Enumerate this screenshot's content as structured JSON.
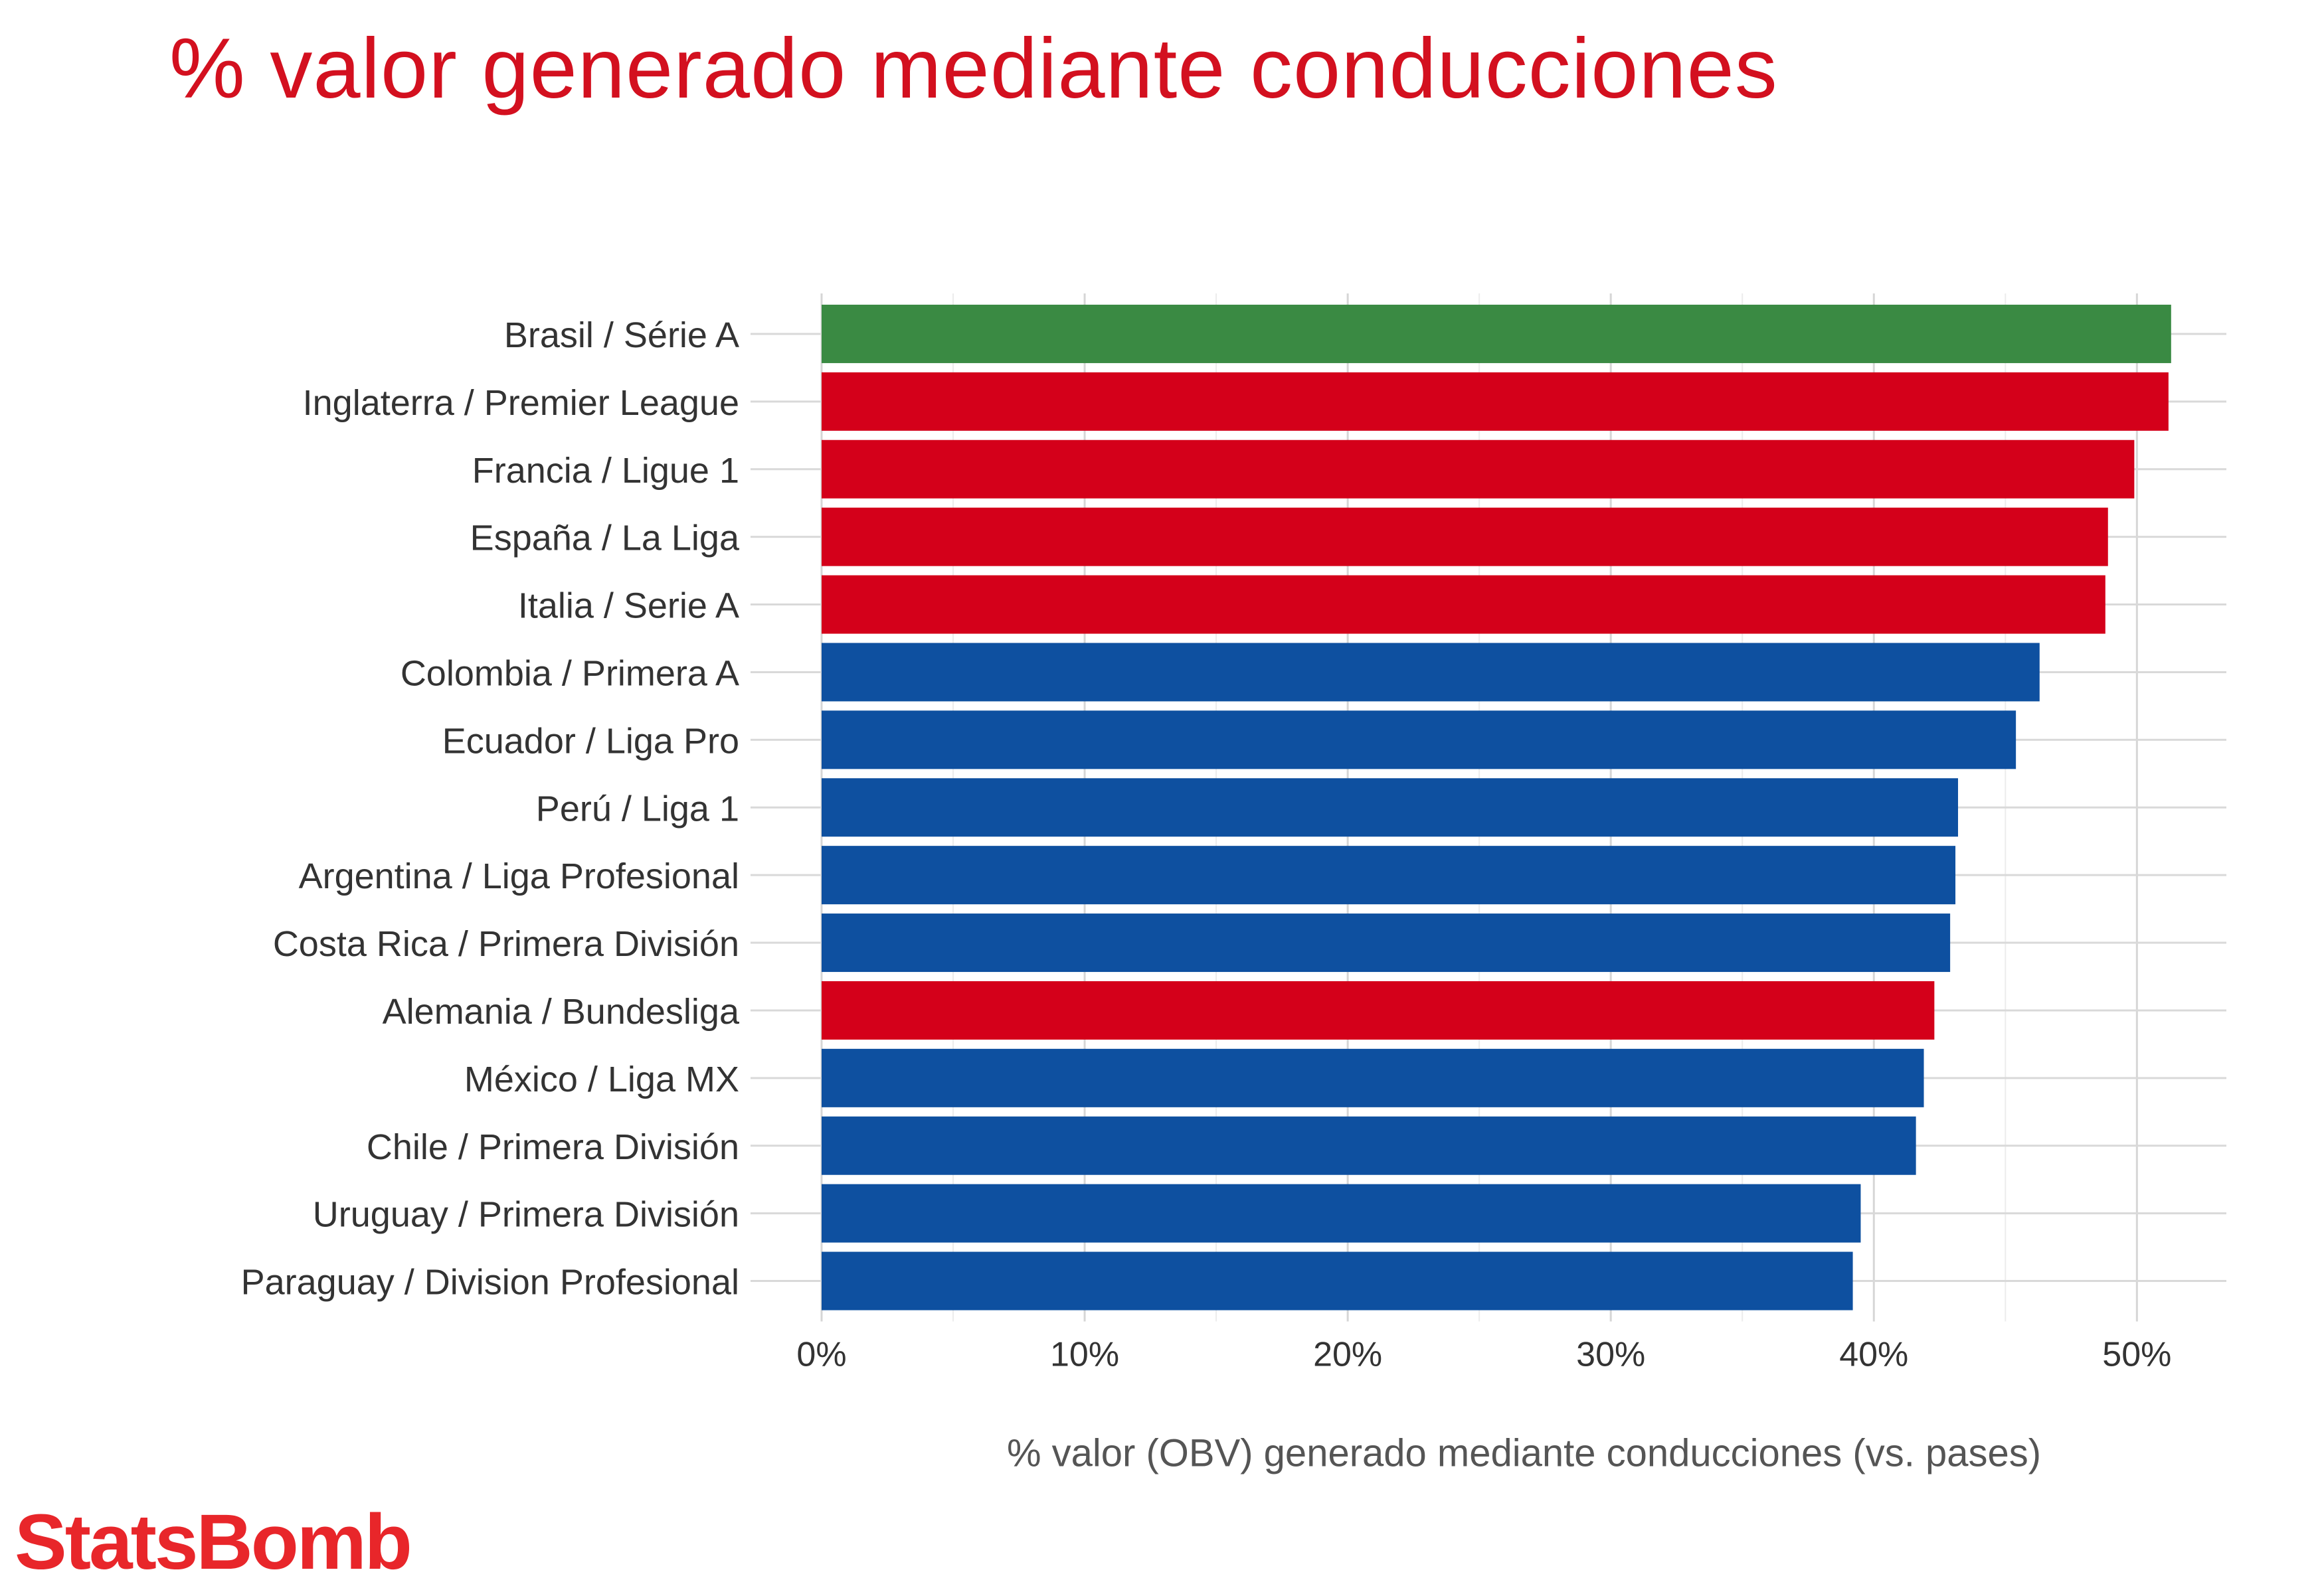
{
  "chart_data": {
    "type": "bar",
    "orientation": "horizontal",
    "title": "% valor generado mediante conducciones",
    "xlabel": "% valor (OBV) generado mediante conducciones (vs. pases)",
    "ylabel": "",
    "xlim": [
      0,
      53.4
    ],
    "x_ticks": [
      0,
      10,
      20,
      30,
      40,
      50
    ],
    "x_tick_labels": [
      "0%",
      "10%",
      "20%",
      "30%",
      "40%",
      "50%"
    ],
    "grid": true,
    "legend": "none",
    "categories": [
      "Brasil / Série A",
      "Inglaterra / Premier League",
      "Francia / Ligue 1",
      "España / La Liga",
      "Italia / Serie A",
      "Colombia / Primera A",
      "Ecuador / Liga Pro",
      "Perú / Liga 1",
      "Argentina / Liga Profesional",
      "Costa Rica / Primera División",
      "Alemania / Bundesliga",
      "México / Liga MX",
      "Chile / Primera División",
      "Uruguay / Primera División",
      "Paraguay / Division Profesional"
    ],
    "values": [
      51.3,
      51.2,
      49.9,
      48.9,
      48.8,
      46.3,
      45.4,
      43.2,
      43.1,
      42.9,
      42.3,
      41.9,
      41.6,
      39.5,
      39.2
    ],
    "bar_colors": [
      "#3a8a43",
      "#d4001a",
      "#d4001a",
      "#d4001a",
      "#d4001a",
      "#0e50a0",
      "#0e50a0",
      "#0e50a0",
      "#0e50a0",
      "#0e50a0",
      "#d4001a",
      "#0e50a0",
      "#0e50a0",
      "#0e50a0",
      "#0e50a0"
    ]
  },
  "branding": {
    "logo_text": "StatsBomb",
    "logo_color": "#e8262a",
    "title_color": "#d3101f"
  }
}
